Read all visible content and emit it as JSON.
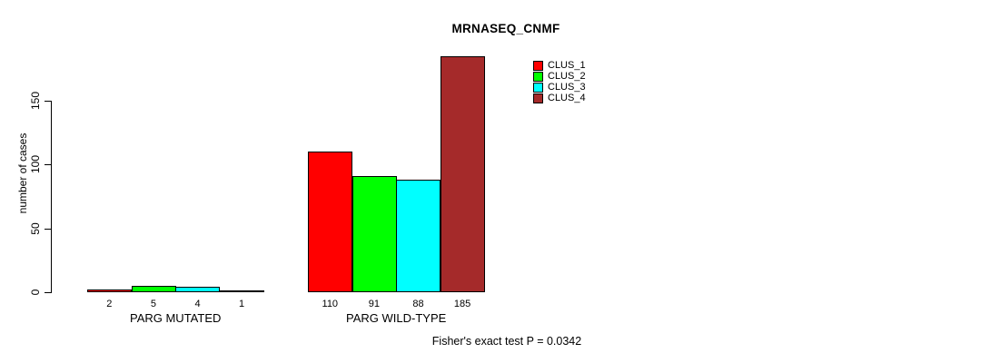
{
  "chart_data": {
    "type": "bar",
    "title": "MRNASEQ_CNMF",
    "ylabel": "number of cases",
    "xlabel": "",
    "ylim": [
      0,
      150
    ],
    "yticks": [
      0,
      50,
      100,
      150
    ],
    "grid": false,
    "legend_position": "top-right",
    "bar_value_labels": true,
    "categories": [
      "PARG MUTATED",
      "PARG WILD-TYPE"
    ],
    "series": [
      {
        "name": "CLUS_1",
        "color": "#ff0000",
        "values": [
          2,
          110
        ]
      },
      {
        "name": "CLUS_2",
        "color": "#00ff00",
        "values": [
          5,
          91
        ]
      },
      {
        "name": "CLUS_3",
        "color": "#00ffff",
        "values": [
          4,
          88
        ]
      },
      {
        "name": "CLUS_4",
        "color": "#a52a2a",
        "values": [
          1,
          185
        ]
      }
    ],
    "annotation": "Fisher's exact test P = 0.0342"
  }
}
